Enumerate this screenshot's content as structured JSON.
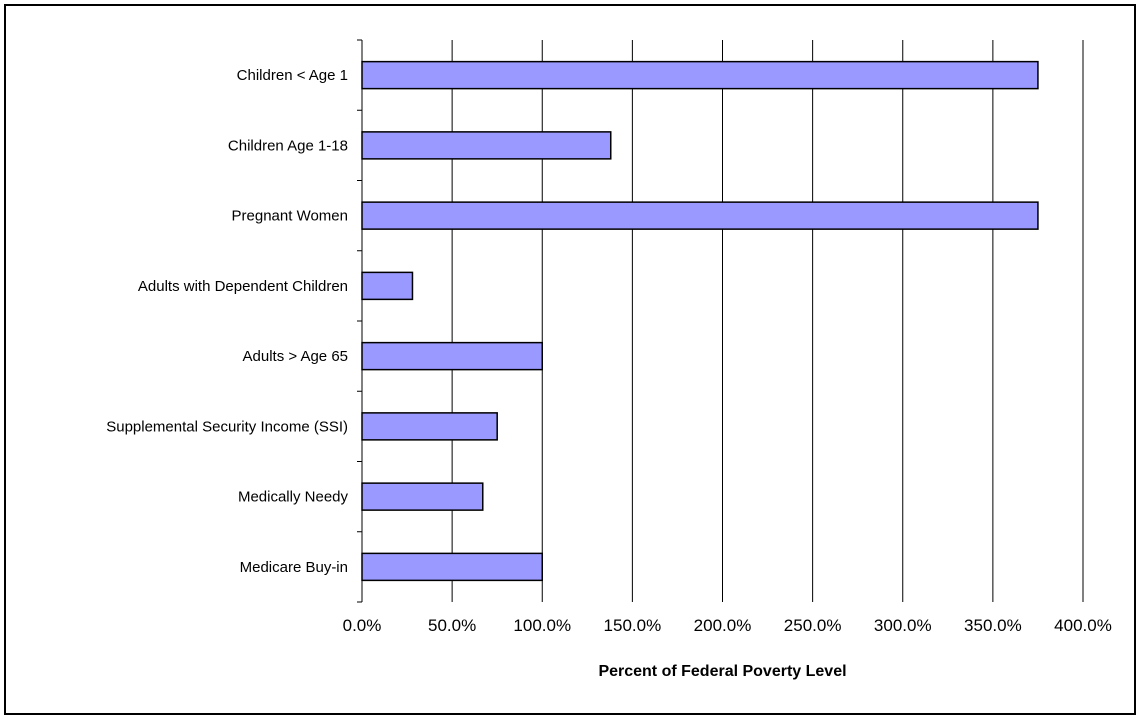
{
  "chart_data": {
    "type": "bar",
    "orientation": "horizontal",
    "categories": [
      "Children < Age 1",
      "Children Age 1-18",
      "Pregnant Women",
      "Adults with Dependent Children",
      "Adults > Age 65",
      "Supplemental Security Income (SSI)",
      "Medically Needy",
      "Medicare Buy-in"
    ],
    "values": [
      375,
      138,
      375,
      28,
      100,
      75,
      67,
      100
    ],
    "xlabel": "Percent of Federal Poverty Level",
    "xlim": [
      0,
      400
    ],
    "xticks": [
      0,
      50,
      100,
      150,
      200,
      250,
      300,
      350,
      400
    ],
    "tick_labels": [
      "0.0%",
      "50.0%",
      "100.0%",
      "150.0%",
      "200.0%",
      "250.0%",
      "300.0%",
      "350.0%",
      "400.0%"
    ],
    "grid": "vertical",
    "legend": "none",
    "bar_color": "#9999ff",
    "bar_border_color": "#000000"
  }
}
